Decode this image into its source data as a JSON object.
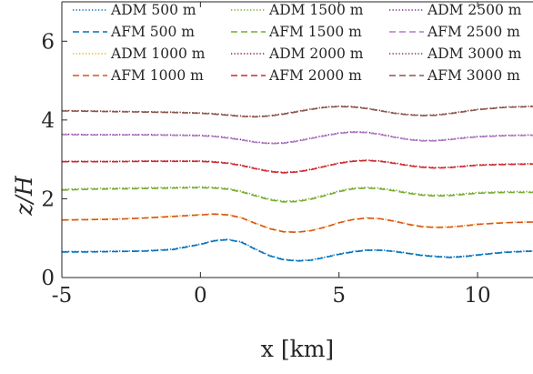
{
  "chart_data": {
    "type": "line",
    "title": "",
    "xlabel": "x [km]",
    "ylabel": "z/H",
    "xlim": [
      -5,
      12
    ],
    "ylim": [
      0,
      7
    ],
    "xticks": [
      -5,
      0,
      5,
      10
    ],
    "xtick_labels": [
      "-5",
      "0",
      "5",
      "10"
    ],
    "yticks": [
      0,
      2,
      4,
      6
    ],
    "ytick_labels": [
      "0",
      "2",
      "4",
      "6"
    ],
    "grid": false,
    "legend_position": "top",
    "legend_columns": 3,
    "x": [
      -5,
      -4,
      -3,
      -2,
      -1,
      0,
      0.5,
      1,
      1.5,
      2,
      2.5,
      3,
      3.5,
      4,
      4.5,
      5,
      5.5,
      6,
      6.5,
      7,
      7.5,
      8,
      8.5,
      9,
      9.5,
      10,
      11,
      12
    ],
    "series": [
      {
        "name": "ADM 500 m",
        "color": "#0072BD",
        "dash": "dotted",
        "values": [
          0.66,
          0.66,
          0.67,
          0.68,
          0.72,
          0.85,
          0.94,
          0.97,
          0.9,
          0.72,
          0.56,
          0.46,
          0.43,
          0.45,
          0.52,
          0.6,
          0.66,
          0.7,
          0.7,
          0.67,
          0.62,
          0.57,
          0.54,
          0.52,
          0.54,
          0.58,
          0.65,
          0.68
        ]
      },
      {
        "name": "AFM 500 m",
        "color": "#0072BD",
        "dash": "dashed",
        "values": [
          0.65,
          0.65,
          0.66,
          0.67,
          0.71,
          0.84,
          0.93,
          0.96,
          0.89,
          0.71,
          0.55,
          0.45,
          0.42,
          0.44,
          0.51,
          0.59,
          0.65,
          0.69,
          0.69,
          0.66,
          0.61,
          0.56,
          0.53,
          0.51,
          0.53,
          0.57,
          0.64,
          0.67
        ]
      },
      {
        "name": "ADM 1000 m",
        "color": "#EDB120",
        "dash": "dotted",
        "values": [
          1.47,
          1.48,
          1.49,
          1.52,
          1.56,
          1.6,
          1.62,
          1.6,
          1.52,
          1.38,
          1.25,
          1.17,
          1.16,
          1.2,
          1.29,
          1.4,
          1.48,
          1.52,
          1.5,
          1.44,
          1.36,
          1.3,
          1.28,
          1.29,
          1.32,
          1.36,
          1.4,
          1.42
        ]
      },
      {
        "name": "AFM 1000 m",
        "color": "#D95319",
        "dash": "dashed",
        "values": [
          1.46,
          1.47,
          1.48,
          1.51,
          1.55,
          1.59,
          1.61,
          1.59,
          1.51,
          1.37,
          1.24,
          1.16,
          1.15,
          1.19,
          1.28,
          1.39,
          1.47,
          1.51,
          1.49,
          1.43,
          1.35,
          1.29,
          1.27,
          1.28,
          1.31,
          1.35,
          1.39,
          1.41
        ]
      },
      {
        "name": "ADM 1500 m",
        "color": "#77AC30",
        "dash": "dotted",
        "values": [
          2.24,
          2.26,
          2.27,
          2.28,
          2.29,
          2.3,
          2.29,
          2.26,
          2.19,
          2.09,
          1.99,
          1.94,
          1.95,
          2.01,
          2.1,
          2.2,
          2.27,
          2.29,
          2.27,
          2.22,
          2.16,
          2.11,
          2.09,
          2.1,
          2.13,
          2.16,
          2.18,
          2.18
        ]
      },
      {
        "name": "AFM 1500 m",
        "color": "#77AC30",
        "dash": "dashed",
        "values": [
          2.22,
          2.24,
          2.25,
          2.26,
          2.27,
          2.28,
          2.27,
          2.24,
          2.17,
          2.07,
          1.97,
          1.92,
          1.93,
          1.99,
          2.08,
          2.18,
          2.25,
          2.27,
          2.25,
          2.2,
          2.14,
          2.09,
          2.07,
          2.08,
          2.11,
          2.14,
          2.16,
          2.16
        ]
      },
      {
        "name": "ADM 2000 m",
        "color": "#A2142F",
        "dash": "dotted",
        "values": [
          2.95,
          2.95,
          2.95,
          2.96,
          2.96,
          2.96,
          2.94,
          2.91,
          2.85,
          2.77,
          2.7,
          2.67,
          2.69,
          2.75,
          2.83,
          2.91,
          2.96,
          2.98,
          2.96,
          2.91,
          2.85,
          2.81,
          2.79,
          2.8,
          2.83,
          2.86,
          2.88,
          2.89
        ]
      },
      {
        "name": "AFM 2000 m",
        "color": "#D62728",
        "dash": "dashed",
        "values": [
          2.94,
          2.94,
          2.94,
          2.95,
          2.95,
          2.95,
          2.93,
          2.9,
          2.84,
          2.76,
          2.69,
          2.66,
          2.68,
          2.74,
          2.82,
          2.9,
          2.95,
          2.97,
          2.95,
          2.9,
          2.84,
          2.8,
          2.78,
          2.79,
          2.82,
          2.85,
          2.87,
          2.88
        ]
      },
      {
        "name": "ADM 2500 m",
        "color": "#7E2F8E",
        "dash": "dotted",
        "values": [
          3.64,
          3.63,
          3.63,
          3.63,
          3.62,
          3.61,
          3.59,
          3.55,
          3.5,
          3.44,
          3.41,
          3.42,
          3.47,
          3.54,
          3.61,
          3.67,
          3.7,
          3.69,
          3.64,
          3.57,
          3.51,
          3.48,
          3.48,
          3.51,
          3.55,
          3.58,
          3.61,
          3.62
        ]
      },
      {
        "name": "AFM 2500 m",
        "color": "#B07CC6",
        "dash": "dashed",
        "values": [
          3.63,
          3.62,
          3.62,
          3.62,
          3.61,
          3.6,
          3.58,
          3.54,
          3.49,
          3.43,
          3.4,
          3.41,
          3.46,
          3.53,
          3.6,
          3.66,
          3.69,
          3.68,
          3.63,
          3.56,
          3.5,
          3.47,
          3.47,
          3.5,
          3.54,
          3.57,
          3.6,
          3.61
        ]
      },
      {
        "name": "ADM 3000 m",
        "color": "#7B3A3A",
        "dash": "dotted",
        "values": [
          4.24,
          4.23,
          4.22,
          4.21,
          4.2,
          4.18,
          4.16,
          4.13,
          4.1,
          4.09,
          4.11,
          4.16,
          4.22,
          4.28,
          4.33,
          4.35,
          4.34,
          4.3,
          4.24,
          4.18,
          4.14,
          4.12,
          4.13,
          4.17,
          4.22,
          4.27,
          4.33,
          4.35
        ]
      },
      {
        "name": "AFM 3000 m",
        "color": "#8C564B",
        "dash": "dashed",
        "values": [
          4.23,
          4.22,
          4.21,
          4.2,
          4.19,
          4.17,
          4.15,
          4.12,
          4.09,
          4.08,
          4.1,
          4.15,
          4.21,
          4.27,
          4.32,
          4.34,
          4.33,
          4.29,
          4.23,
          4.17,
          4.13,
          4.11,
          4.12,
          4.16,
          4.21,
          4.26,
          4.32,
          4.34
        ]
      }
    ]
  }
}
